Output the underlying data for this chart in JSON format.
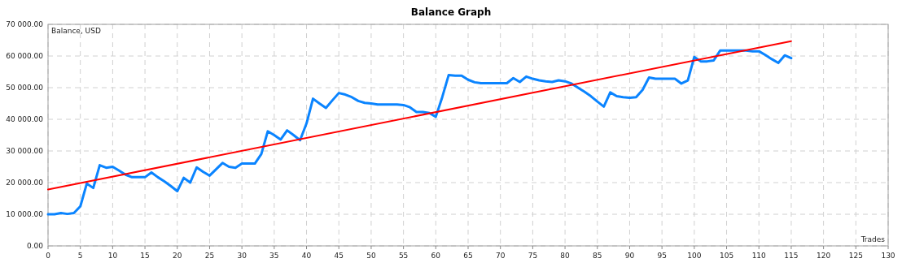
{
  "chart_data": {
    "type": "line",
    "title": "Balance Graph",
    "xlabel": "Trades",
    "ylabel": "Balance, USD",
    "xlim": [
      0,
      130
    ],
    "xticks": [
      0,
      5,
      10,
      15,
      20,
      25,
      30,
      35,
      40,
      45,
      50,
      55,
      60,
      65,
      70,
      75,
      80,
      85,
      90,
      95,
      100,
      105,
      110,
      115,
      120,
      125,
      130
    ],
    "ylim": [
      0,
      70000
    ],
    "yticks": [
      {
        "value": 0,
        "label": "0.00"
      },
      {
        "value": 10000,
        "label": "10 000.00"
      },
      {
        "value": 20000,
        "label": "20 000.00"
      },
      {
        "value": 30000,
        "label": "30 000.00"
      },
      {
        "value": 40000,
        "label": "40 000.00"
      },
      {
        "value": 50000,
        "label": "50 000.00"
      },
      {
        "value": 60000,
        "label": "60 000.00"
      },
      {
        "value": 70000,
        "label": "70 000.00"
      }
    ],
    "grid": true,
    "series": [
      {
        "color": "#0a84ff",
        "x": [
          0,
          1,
          2,
          3,
          4,
          5,
          6,
          7,
          8,
          9,
          10,
          11,
          12,
          13,
          14,
          15,
          16,
          17,
          18,
          19,
          20,
          21,
          22,
          23,
          24,
          25,
          26,
          27,
          28,
          29,
          30,
          31,
          32,
          33,
          34,
          35,
          36,
          37,
          38,
          39,
          40,
          41,
          42,
          43,
          44,
          45,
          46,
          47,
          48,
          49,
          50,
          51,
          52,
          53,
          54,
          55,
          56,
          57,
          58,
          59,
          60,
          61,
          62,
          63,
          64,
          65,
          66,
          67,
          68,
          69,
          70,
          71,
          72,
          73,
          74,
          75,
          76,
          77,
          78,
          79,
          80,
          81,
          82,
          83,
          84,
          85,
          86,
          87,
          88,
          89,
          90,
          91,
          92,
          93,
          94,
          95,
          96,
          97,
          98,
          99,
          100,
          101,
          102,
          103,
          104,
          105,
          106,
          107,
          108,
          109,
          110,
          111,
          112,
          113,
          114,
          115
        ],
        "values": [
          10000,
          10000,
          10400,
          10100,
          10400,
          12500,
          19700,
          18300,
          25500,
          24700,
          25000,
          23800,
          22500,
          21700,
          21700,
          21700,
          23200,
          21700,
          20400,
          18900,
          17300,
          21500,
          20000,
          24800,
          23400,
          22200,
          24200,
          26200,
          25000,
          24700,
          26000,
          26000,
          26000,
          29000,
          36200,
          35000,
          33600,
          36500,
          35000,
          33400,
          38700,
          46500,
          45000,
          43600,
          46000,
          48300,
          47800,
          47000,
          45800,
          45200,
          45000,
          44700,
          44700,
          44700,
          44700,
          44500,
          43800,
          42300,
          42300,
          42000,
          40800,
          47000,
          54000,
          53800,
          53800,
          52500,
          51700,
          51400,
          51400,
          51400,
          51400,
          51400,
          53000,
          51800,
          53500,
          52800,
          52300,
          52000,
          51800,
          52300,
          52000,
          51300,
          50000,
          48700,
          47300,
          45600,
          44000,
          48500,
          47300,
          47000,
          46800,
          47000,
          49300,
          53200,
          52800,
          52800,
          52800,
          52800,
          51300,
          52300,
          59700,
          58300,
          58300,
          58600,
          61700,
          61700,
          61700,
          61700,
          61700,
          61500,
          61500,
          60300,
          59000,
          57800,
          60200,
          59300
        ]
      },
      {
        "color": "#ff0000",
        "x": [
          0,
          115
        ],
        "values": [
          17800,
          64700
        ]
      }
    ]
  }
}
